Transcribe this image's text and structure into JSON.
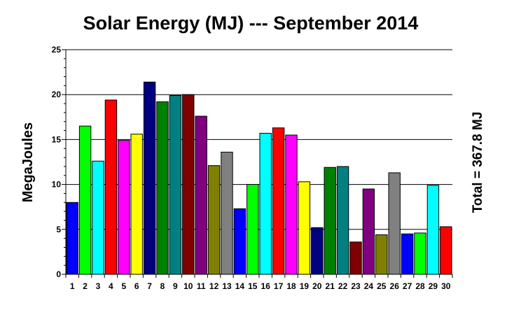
{
  "chart_data": {
    "type": "bar",
    "title": "Solar Energy (MJ) --- September 2014",
    "xlabel": "",
    "ylabel": "MegaJoules",
    "annotation": "Total = 367.8 MJ",
    "ylim": [
      0,
      25
    ],
    "yticks": [
      "0",
      "5",
      "10",
      "15",
      "20",
      "25"
    ],
    "grid": true,
    "categories": [
      "1",
      "2",
      "3",
      "4",
      "5",
      "6",
      "7",
      "8",
      "9",
      "10",
      "11",
      "12",
      "13",
      "14",
      "15",
      "16",
      "17",
      "18",
      "19",
      "20",
      "21",
      "22",
      "23",
      "24",
      "25",
      "26",
      "27",
      "28",
      "29",
      "30"
    ],
    "values": [
      8.0,
      16.5,
      12.6,
      19.4,
      14.9,
      15.6,
      21.4,
      19.2,
      19.9,
      20.0,
      17.6,
      12.1,
      13.6,
      7.3,
      10.0,
      15.7,
      16.3,
      15.5,
      10.3,
      5.2,
      11.9,
      12.0,
      3.6,
      9.5,
      4.4,
      11.3,
      4.5,
      4.6,
      9.9,
      5.3
    ],
    "colors": [
      "#0000ff",
      "#00ff00",
      "#00ffff",
      "#ff0000",
      "#ff00ff",
      "#ffff00",
      "#000080",
      "#008000",
      "#008080",
      "#800000",
      "#800080",
      "#808000",
      "#808080",
      "#0000ff",
      "#00ff00",
      "#00ffff",
      "#ff0000",
      "#ff00ff",
      "#ffff00",
      "#000080",
      "#008000",
      "#008080",
      "#800000",
      "#800080",
      "#808000",
      "#808080",
      "#0000ff",
      "#00ff00",
      "#00ffff",
      "#ff0000"
    ]
  }
}
